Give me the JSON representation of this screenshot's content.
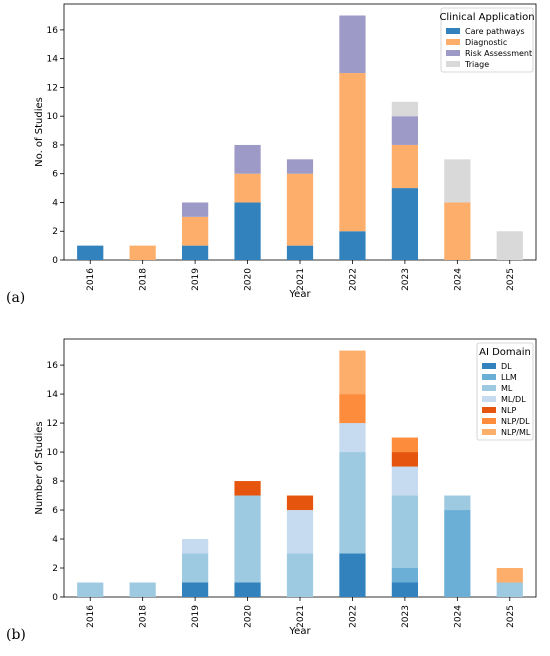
{
  "chart_data": [
    {
      "type": "bar",
      "panel_label": "(a)",
      "stacked": true,
      "categories": [
        "2016",
        "2018",
        "2019",
        "2020",
        "2021",
        "2022",
        "2023",
        "2024",
        "2025"
      ],
      "xlabel": "Year",
      "ylabel": "No. of Studies",
      "ylim": [
        0,
        17.8
      ],
      "yticks": [
        0,
        2,
        4,
        6,
        8,
        10,
        12,
        14,
        16
      ],
      "legend_title": "Clinical Application",
      "legend_position": "top-right",
      "series": [
        {
          "name": "Care pathways",
          "color": "#3182bd",
          "values": [
            1,
            0,
            1,
            4,
            1,
            2,
            5,
            0,
            0
          ]
        },
        {
          "name": "Diagnostic",
          "color": "#fdae6b",
          "values": [
            0,
            1,
            2,
            2,
            5,
            11,
            3,
            4,
            0
          ]
        },
        {
          "name": "Risk Assessment",
          "color": "#9e9ac8",
          "values": [
            0,
            0,
            1,
            2,
            1,
            4,
            2,
            0,
            0
          ]
        },
        {
          "name": "Triage",
          "color": "#d9d9d9",
          "values": [
            0,
            0,
            0,
            0,
            0,
            0,
            1,
            3,
            2
          ]
        }
      ]
    },
    {
      "type": "bar",
      "panel_label": "(b)",
      "stacked": true,
      "categories": [
        "2016",
        "2018",
        "2019",
        "2020",
        "2021",
        "2022",
        "2023",
        "2024",
        "2025"
      ],
      "xlabel": "Year",
      "ylabel": "Number of Studies",
      "ylim": [
        0,
        17.8
      ],
      "yticks": [
        0,
        2,
        4,
        6,
        8,
        10,
        12,
        14,
        16
      ],
      "legend_title": "AI Domain",
      "legend_position": "top-right",
      "series": [
        {
          "name": "DL",
          "color": "#3182bd",
          "values": [
            0,
            0,
            1,
            1,
            0,
            3,
            1,
            0,
            0
          ]
        },
        {
          "name": "LLM",
          "color": "#6baed6",
          "values": [
            0,
            0,
            0,
            0,
            0,
            0,
            1,
            6,
            0
          ]
        },
        {
          "name": "ML",
          "color": "#9ecae1",
          "values": [
            1,
            1,
            2,
            6,
            3,
            7,
            5,
            1,
            1
          ]
        },
        {
          "name": "ML/DL",
          "color": "#c6dbef",
          "values": [
            0,
            0,
            1,
            0,
            3,
            2,
            2,
            0,
            0
          ]
        },
        {
          "name": "NLP",
          "color": "#e6550d",
          "values": [
            0,
            0,
            0,
            1,
            1,
            0,
            1,
            0,
            0
          ]
        },
        {
          "name": "NLP/DL",
          "color": "#fd8d3c",
          "values": [
            0,
            0,
            0,
            0,
            0,
            2,
            1,
            0,
            0
          ]
        },
        {
          "name": "NLP/ML",
          "color": "#fdae6b",
          "values": [
            0,
            0,
            0,
            0,
            0,
            3,
            0,
            0,
            1
          ]
        }
      ]
    }
  ]
}
